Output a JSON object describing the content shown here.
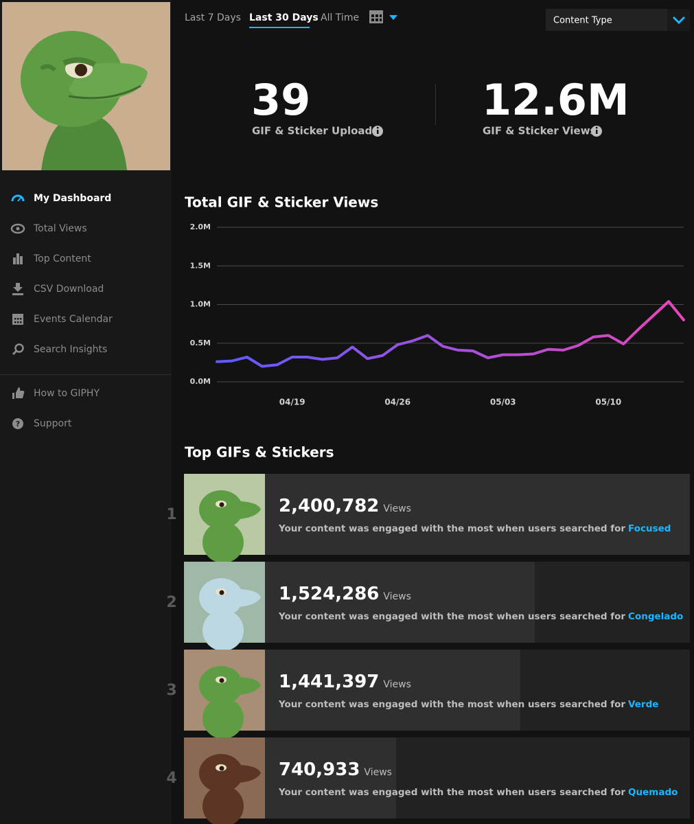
{
  "header": {
    "tabs": [
      "Last 7 Days",
      "Last 30 Days",
      "All Time"
    ],
    "active_tab": 1,
    "dropdown": "Content Type"
  },
  "sidebar": {
    "items": [
      "My Dashboard",
      "Total Views",
      "Top Content",
      "CSV Download",
      "Events Calendar",
      "Search Insights"
    ],
    "active": 0,
    "footer_items": [
      "How to GIPHY",
      "Support"
    ]
  },
  "stats": [
    {
      "value": 39,
      "label": "GIF & Sticker Uploads"
    },
    {
      "value": "12.6M",
      "label": "GIF & Sticker Views"
    }
  ],
  "chart_data": {
    "type": "line",
    "title": "Total GIF & Sticker Views",
    "x": [
      "04/14",
      "04/15",
      "04/16",
      "04/17",
      "04/18",
      "04/19",
      "04/20",
      "04/21",
      "04/22",
      "04/23",
      "04/24",
      "04/25",
      "04/26",
      "04/27",
      "04/28",
      "04/29",
      "04/30",
      "05/01",
      "05/02",
      "05/03",
      "05/04",
      "05/05",
      "05/06",
      "05/07",
      "05/08",
      "05/09",
      "05/10",
      "05/11",
      "05/12",
      "05/13",
      "05/14",
      "05/15"
    ],
    "values": [
      0.26,
      0.27,
      0.32,
      0.2,
      0.22,
      0.32,
      0.32,
      0.29,
      0.31,
      0.45,
      0.3,
      0.34,
      0.48,
      0.53,
      0.6,
      0.46,
      0.41,
      0.4,
      0.31,
      0.35,
      0.35,
      0.36,
      0.42,
      0.41,
      0.47,
      0.58,
      0.6,
      0.49,
      0.68,
      0.86,
      1.04,
      0.8
    ],
    "ylim": [
      0,
      2
    ],
    "yticks": [
      {
        "value": 0,
        "label": "0.0M"
      },
      {
        "value": 0.5,
        "label": "0.5M"
      },
      {
        "value": 1,
        "label": "1.0M"
      },
      {
        "value": 1.5,
        "label": "1.5M"
      },
      {
        "value": 2,
        "label": "2.0M"
      }
    ],
    "xticks": [
      "04/19",
      "04/26",
      "05/03",
      "05/10"
    ],
    "grid": true,
    "colors": [
      "#5d5cff",
      "#e846b8"
    ]
  },
  "top_content": {
    "title": "Top GIFs & Stickers",
    "unit": "Views",
    "message": "Your content was engaged with the most when users searched for",
    "items": [
      {
        "rank": 1,
        "views": 2400782,
        "views_label": "2,400,782",
        "term": "Focused"
      },
      {
        "rank": 2,
        "views": 1524286,
        "views_label": "1,524,286",
        "term": "Congelado"
      },
      {
        "rank": 3,
        "views": 1441397,
        "views_label": "1,441,397",
        "term": "Verde"
      },
      {
        "rank": 4,
        "views": 740933,
        "views_label": "740,933",
        "term": "Quemado"
      }
    ]
  }
}
